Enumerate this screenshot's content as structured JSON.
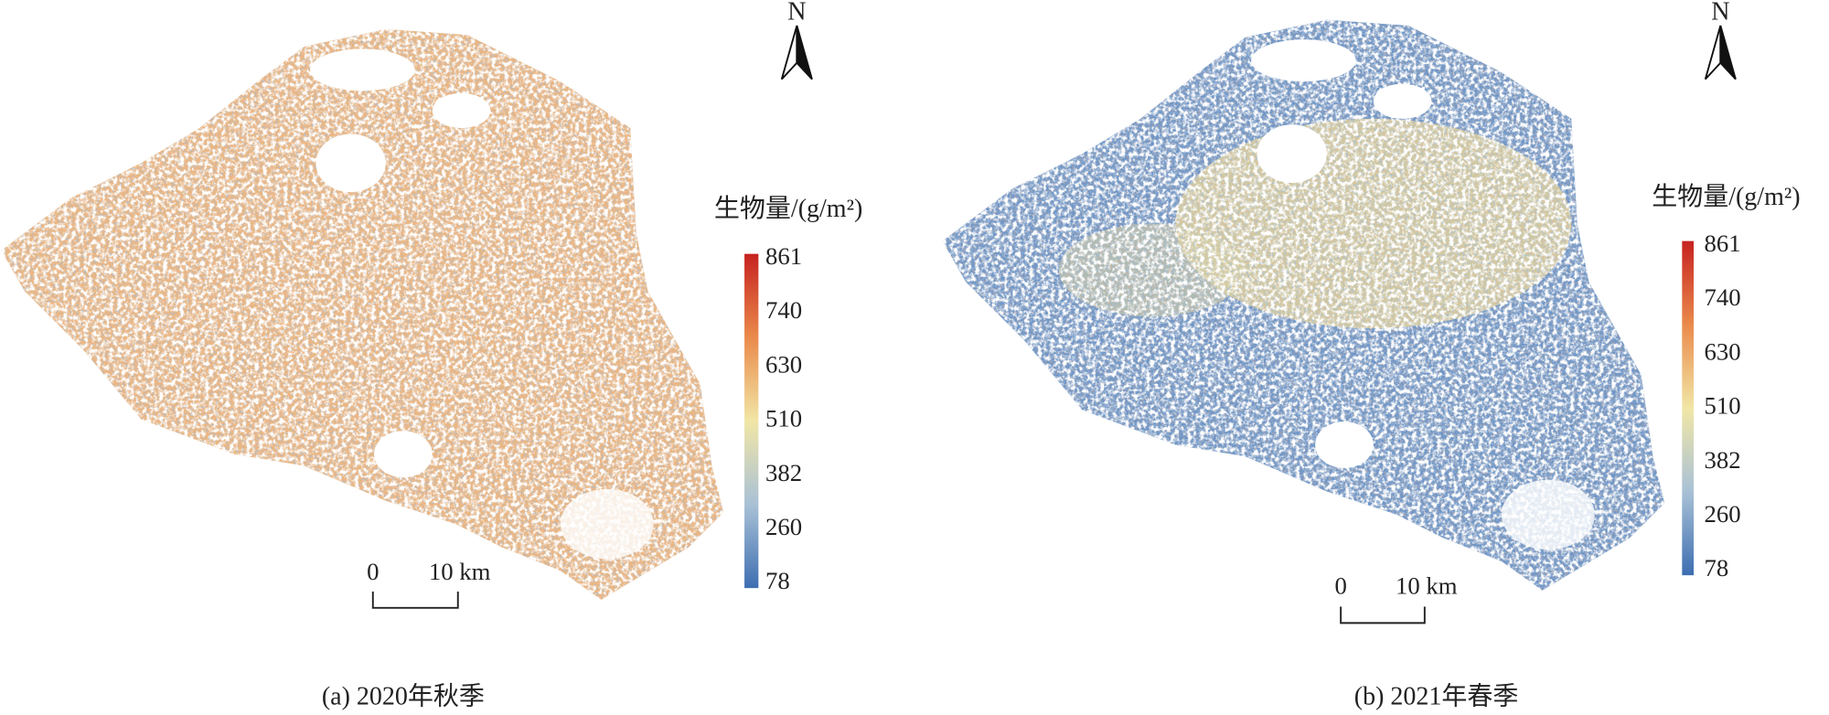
{
  "panels": [
    {
      "caption": "(a) 2020年秋季",
      "north": "N",
      "legend": {
        "title": "生物量/(g/m²)",
        "labels": [
          861,
          740,
          630,
          510,
          382,
          260,
          78
        ]
      },
      "scale_bar": {
        "labels": [
          "0",
          "10 km"
        ]
      }
    },
    {
      "caption": "(b) 2021年春季",
      "north": "N",
      "legend": {
        "title": "生物量/(g/m²)",
        "labels": [
          861,
          740,
          630,
          510,
          382,
          260,
          78
        ]
      },
      "scale_bar": {
        "labels": [
          "0",
          "10 km"
        ]
      }
    }
  ]
}
